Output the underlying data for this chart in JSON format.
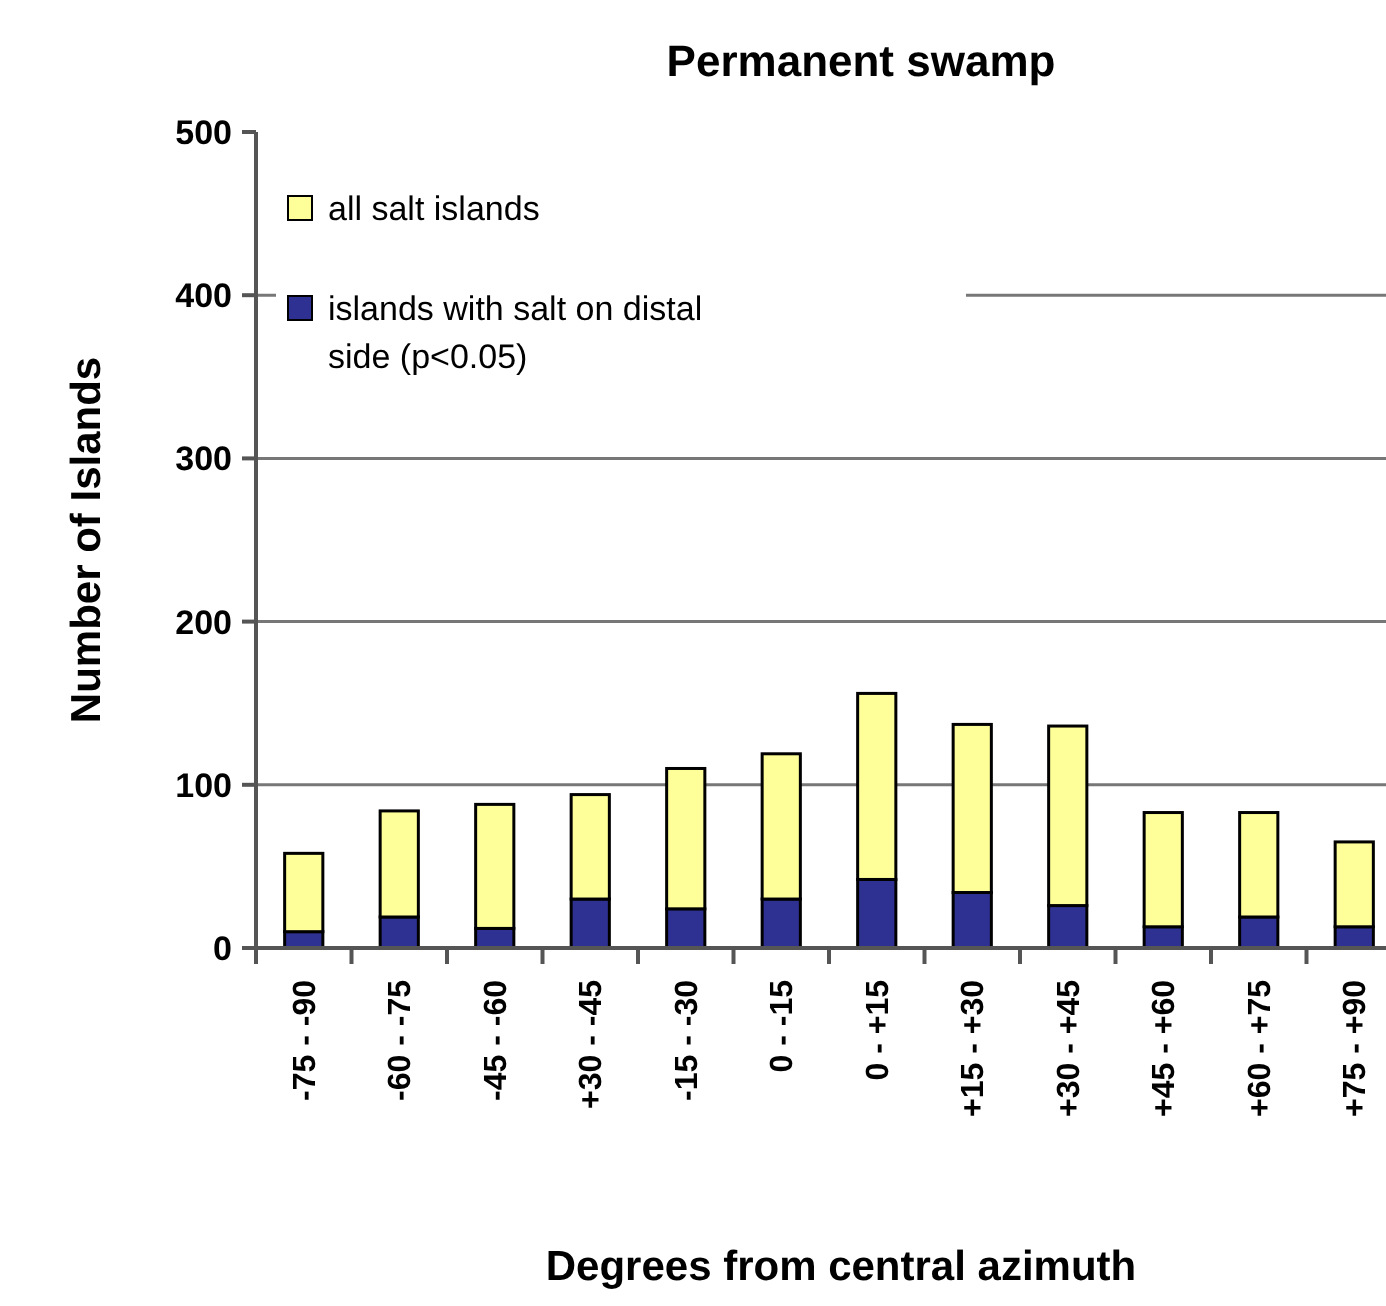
{
  "chart_data": {
    "type": "bar",
    "title": "Permanent swamp",
    "xlabel": "Degrees from central azimuth",
    "ylabel": "Number of Islands",
    "categories": [
      "-75 - -90",
      "-60 - -75",
      "-45 - -60",
      "+30 - -45",
      "-15 - -30",
      "0 - -15",
      "0 - +15",
      "+15 - +30",
      "+30 - +45",
      "+45 - +60",
      "+60 - +75",
      "+75 - +90"
    ],
    "series": [
      {
        "name": "islands with salt on distal side (p<0.05)",
        "color": "#2e3192",
        "values": [
          10,
          19,
          12,
          30,
          24,
          30,
          42,
          34,
          26,
          13,
          19,
          13
        ]
      },
      {
        "name": "all salt islands",
        "color": "#ffff99",
        "values": [
          48,
          65,
          76,
          64,
          86,
          89,
          114,
          103,
          110,
          70,
          64,
          52
        ]
      }
    ],
    "stacked": true,
    "ylim": [
      0,
      500
    ],
    "yticks": [
      0,
      100,
      200,
      300,
      400,
      500
    ],
    "grid": "y",
    "legend": "top left"
  }
}
